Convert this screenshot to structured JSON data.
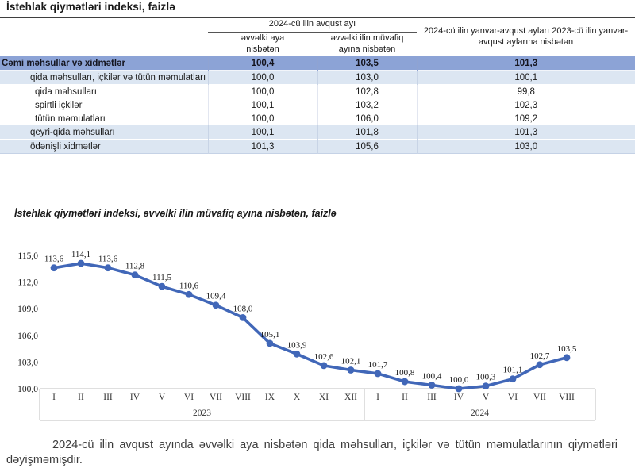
{
  "page_title": "İstehlak qiymətləri indeksi, faizlə",
  "table": {
    "group_header": "2024-cü ilin avqust ayı",
    "col_headers": {
      "col1": "əvvəlki aya nisbətən",
      "col2": "əvvəlki ilin müvafiq ayına nisbətən",
      "col3": "2024-cü ilin yanvar-avqust ayları 2023-cü ilin yanvar-avqust aylarına nisbətən"
    },
    "rows": [
      {
        "label": "Cəmi məhsullar və xidmətlər",
        "values": [
          "100,4",
          "103,5",
          "101,3"
        ],
        "style": "total",
        "indent": 0
      },
      {
        "label": "qida məhsulları, içkilər və tütün məmulatları",
        "values": [
          "100,0",
          "103,0",
          "100,1"
        ],
        "style": "group",
        "indent": 1
      },
      {
        "label": "qida məhsulları",
        "values": [
          "100,0",
          "102,8",
          "99,8"
        ],
        "style": "sub",
        "indent": 2
      },
      {
        "label": "spirtli içkilər",
        "values": [
          "100,1",
          "103,2",
          "102,3"
        ],
        "style": "sub",
        "indent": 2
      },
      {
        "label": "tütün məmulatları",
        "values": [
          "100,0",
          "106,0",
          "109,2"
        ],
        "style": "sub",
        "indent": 2
      },
      {
        "label": "qeyri-qida məhsulları",
        "values": [
          "100,1",
          "101,8",
          "101,3"
        ],
        "style": "group",
        "indent": 1
      },
      {
        "label": "ödənişli xidmətlər",
        "values": [
          "101,3",
          "105,6",
          "103,0"
        ],
        "style": "group",
        "indent": 1
      }
    ]
  },
  "chart_data": {
    "type": "line",
    "title": "İstehlak qiymətləri indeksi, əvvəlki ilin müvafiq ayına nisbətən, faizlə",
    "x_groups": [
      {
        "year": "2023",
        "months": [
          "I",
          "II",
          "III",
          "IV",
          "V",
          "VI",
          "VII",
          "VIII",
          "IX",
          "X",
          "XI",
          "XII"
        ]
      },
      {
        "year": "2024",
        "months": [
          "I",
          "II",
          "III",
          "IV",
          "V",
          "VI",
          "VII",
          "VIII"
        ]
      }
    ],
    "values": [
      113.6,
      114.1,
      113.6,
      112.8,
      111.5,
      110.6,
      109.4,
      108.0,
      105.1,
      103.9,
      102.6,
      102.1,
      101.7,
      100.8,
      100.4,
      100.0,
      100.3,
      101.1,
      102.7,
      103.5
    ],
    "value_labels": [
      "113,6",
      "114,1",
      "113,6",
      "112,8",
      "111,5",
      "110,6",
      "109,4",
      "108,0",
      "105,1",
      "103,9",
      "102,6",
      "102,1",
      "101,7",
      "100,8",
      "100,4",
      "100,0",
      "100,3",
      "101,1",
      "102,7",
      "103,5"
    ],
    "y_ticks": [
      "115,0",
      "112,0",
      "109,0",
      "106,0",
      "103,0",
      "100,0"
    ],
    "ylim": [
      100,
      115
    ],
    "xlabel": "",
    "ylabel": "",
    "grid": false,
    "legend": "none",
    "line_color": "#4167b8",
    "axis_color": "#bfbfbf"
  },
  "footnote_partial": "2024-cü ilin avqust ayında əvvəlki aya nisbətən qida məhsulları, içkilər və tütün məmulatlarının qiymətləri dəyişməmişdir."
}
